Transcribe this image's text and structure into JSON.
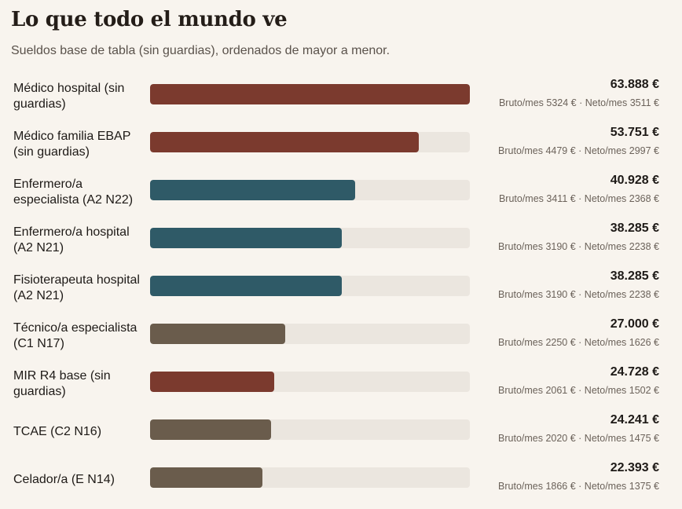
{
  "header": {
    "title": "Lo que todo el mundo ve",
    "subtitle": "Sueldos base de tabla (sin guardias), ordenados de mayor a menor."
  },
  "colors": {
    "medico": "#7b3a2e",
    "enfermeria": "#2f5a67",
    "tecnico": "#6a5c4c",
    "track": "#ebe6df"
  },
  "chart_data": {
    "type": "bar",
    "orientation": "horizontal",
    "title": "Lo que todo el mundo ve",
    "subtitle": "Sueldos base de tabla (sin guardias), ordenados de mayor a menor.",
    "xlim": [
      0,
      63888
    ],
    "rows": [
      {
        "label": "Médico hospital (sin guardias)",
        "value": 63888,
        "value_label": "63.888 €",
        "detail": "Bruto/mes 5324 € · Neto/mes 3511 €",
        "color": "#7b3a2e"
      },
      {
        "label": "Médico familia EBAP (sin guardias)",
        "value": 53751,
        "value_label": "53.751 €",
        "detail": "Bruto/mes 4479 € · Neto/mes 2997 €",
        "color": "#7b3a2e"
      },
      {
        "label": "Enfermero/a especialista (A2 N22)",
        "value": 40928,
        "value_label": "40.928 €",
        "detail": "Bruto/mes 3411 € · Neto/mes 2368 €",
        "color": "#2f5a67"
      },
      {
        "label": "Enfermero/a hospital (A2 N21)",
        "value": 38285,
        "value_label": "38.285 €",
        "detail": "Bruto/mes 3190 € · Neto/mes 2238 €",
        "color": "#2f5a67"
      },
      {
        "label": "Fisioterapeuta hospital (A2 N21)",
        "value": 38285,
        "value_label": "38.285 €",
        "detail": "Bruto/mes 3190 € · Neto/mes 2238 €",
        "color": "#2f5a67"
      },
      {
        "label": "Técnico/a especialista (C1 N17)",
        "value": 27000,
        "value_label": "27.000 €",
        "detail": "Bruto/mes 2250 € · Neto/mes 1626 €",
        "color": "#6a5c4c"
      },
      {
        "label": "MIR R4 base (sin guardias)",
        "value": 24728,
        "value_label": "24.728 €",
        "detail": "Bruto/mes 2061 € · Neto/mes 1502 €",
        "color": "#7b3a2e"
      },
      {
        "label": "TCAE (C2 N16)",
        "value": 24241,
        "value_label": "24.241 €",
        "detail": "Bruto/mes 2020 € · Neto/mes 1475 €",
        "color": "#6a5c4c"
      },
      {
        "label": "Celador/a (E N14)",
        "value": 22393,
        "value_label": "22.393 €",
        "detail": "Bruto/mes 1866 € · Neto/mes 1375 €",
        "color": "#6a5c4c"
      }
    ]
  }
}
